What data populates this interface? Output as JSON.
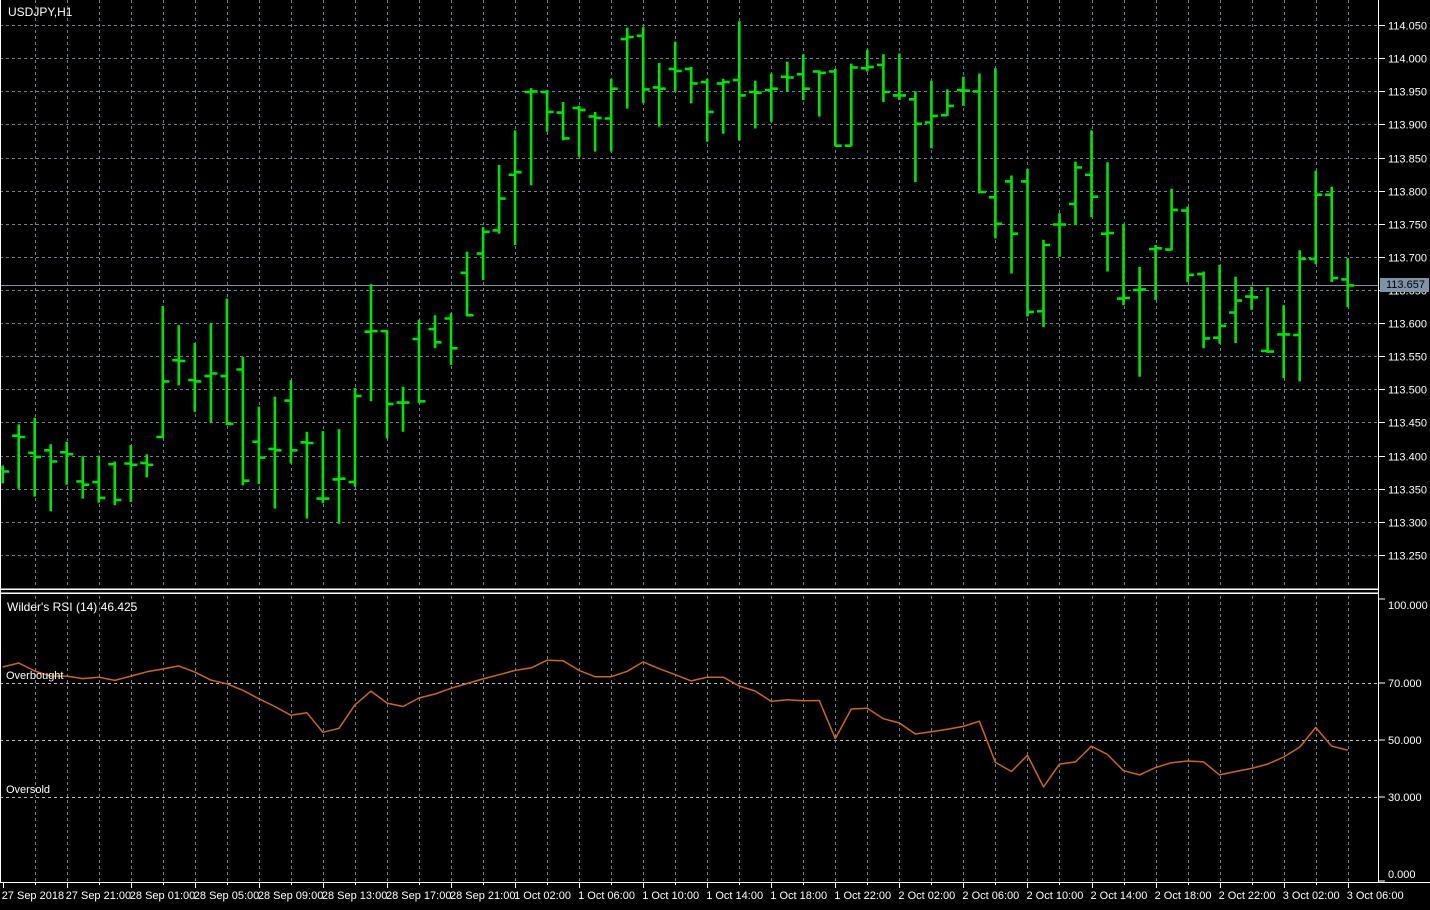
{
  "header": {
    "symbol_period": "USDJPY,H1"
  },
  "colors": {
    "background": "#000000",
    "bar": "#00e400",
    "grid": "#6f8193",
    "level_line": "#c0c0c0",
    "rsi_line": "#cc671f",
    "text": "#ffffff",
    "price_line": "#7e93a8",
    "badge_bg": "#7e93a8",
    "badge_text": "#000000",
    "border": "#ffffff"
  },
  "chart_data": {
    "type": "ohlc-bar",
    "title": "USDJPY,H1",
    "symbol": "USDJPY",
    "timeframe": "H1",
    "grid": "dashed",
    "current_price": "113.657",
    "x_axis": {
      "bars_per_label": 4,
      "labels": [
        "27 Sep 2018",
        "27 Sep 21:00",
        "28 Sep 01:00",
        "28 Sep 05:00",
        "28 Sep 09:00",
        "28 Sep 13:00",
        "28 Sep 17:00",
        "28 Sep 21:00",
        "1 Oct 02:00",
        "1 Oct 06:00",
        "1 Oct 10:00",
        "1 Oct 14:00",
        "1 Oct 18:00",
        "1 Oct 22:00",
        "2 Oct 02:00",
        "2 Oct 06:00",
        "2 Oct 10:00",
        "2 Oct 14:00",
        "2 Oct 18:00",
        "2 Oct 22:00",
        "3 Oct 02:00",
        "3 Oct 06:00"
      ]
    },
    "price_axis": {
      "visible_max": 114.088,
      "visible_min": 113.2,
      "step": 0.05,
      "tick_labels": [
        "114.050",
        "114.000",
        "113.950",
        "113.900",
        "113.850",
        "113.800",
        "113.750",
        "113.700",
        "113.650",
        "113.600",
        "113.550",
        "113.500",
        "113.450",
        "113.400",
        "113.350",
        "113.300",
        "113.250"
      ]
    },
    "bars": [
      [
        113.38,
        113.385,
        113.358,
        113.376
      ],
      [
        113.43,
        113.447,
        113.35,
        113.428
      ],
      [
        113.404,
        113.457,
        113.338,
        113.398
      ],
      [
        113.408,
        113.417,
        113.316,
        113.391
      ],
      [
        113.405,
        113.421,
        113.356,
        113.402
      ],
      [
        113.361,
        113.399,
        113.335,
        113.356
      ],
      [
        113.36,
        113.4,
        113.329,
        113.336
      ],
      [
        113.387,
        113.391,
        113.325,
        113.333
      ],
      [
        113.388,
        113.416,
        113.33,
        113.386
      ],
      [
        113.389,
        113.402,
        113.367,
        113.386
      ],
      [
        113.428,
        113.626,
        113.426,
        113.512
      ],
      [
        113.544,
        113.597,
        113.506,
        113.543
      ],
      [
        113.514,
        113.57,
        113.466,
        113.512
      ],
      [
        113.52,
        113.6,
        113.45,
        113.524
      ],
      [
        113.52,
        113.637,
        113.446,
        113.448
      ],
      [
        113.53,
        113.549,
        113.355,
        113.362
      ],
      [
        113.421,
        113.474,
        113.357,
        113.397
      ],
      [
        113.41,
        113.489,
        113.32,
        113.408
      ],
      [
        113.483,
        113.514,
        113.388,
        113.408
      ],
      [
        113.42,
        113.436,
        113.305,
        113.419
      ],
      [
        113.335,
        113.437,
        113.328,
        113.335
      ],
      [
        113.364,
        113.44,
        113.297,
        113.365
      ],
      [
        113.36,
        113.502,
        113.353,
        113.49
      ],
      [
        113.587,
        113.659,
        113.482,
        113.588
      ],
      [
        113.588,
        113.589,
        113.426,
        113.478
      ],
      [
        113.48,
        113.504,
        113.436,
        113.48
      ],
      [
        113.576,
        113.605,
        113.479,
        113.482
      ],
      [
        113.591,
        113.612,
        113.562,
        113.571
      ],
      [
        113.607,
        113.615,
        113.537,
        113.562
      ],
      [
        113.676,
        113.708,
        113.61,
        113.612
      ],
      [
        113.705,
        113.745,
        113.665,
        113.738
      ],
      [
        113.74,
        113.839,
        113.735,
        113.788
      ],
      [
        113.824,
        113.891,
        113.718,
        113.828
      ],
      [
        113.949,
        113.955,
        113.808,
        113.95
      ],
      [
        113.949,
        113.952,
        113.889,
        113.919
      ],
      [
        113.918,
        113.934,
        113.876,
        113.879
      ],
      [
        113.925,
        113.928,
        113.851,
        113.922
      ],
      [
        113.912,
        113.919,
        113.859,
        113.91
      ],
      [
        113.909,
        113.969,
        113.859,
        113.954
      ],
      [
        114.029,
        114.046,
        113.924,
        114.032
      ],
      [
        114.034,
        114.047,
        113.932,
        113.953
      ],
      [
        113.956,
        113.993,
        113.897,
        113.954
      ],
      [
        113.984,
        114.025,
        113.95,
        113.981
      ],
      [
        113.984,
        113.987,
        113.932,
        113.962
      ],
      [
        113.964,
        113.969,
        113.874,
        113.919
      ],
      [
        113.962,
        113.969,
        113.886,
        113.964
      ],
      [
        113.967,
        114.056,
        113.876,
        113.944
      ],
      [
        113.949,
        113.966,
        113.894,
        113.948
      ],
      [
        113.952,
        113.977,
        113.904,
        113.954
      ],
      [
        113.972,
        113.995,
        113.949,
        113.971
      ],
      [
        113.976,
        114.006,
        113.937,
        113.954
      ],
      [
        113.98,
        113.982,
        113.912,
        113.978
      ],
      [
        113.98,
        113.984,
        113.867,
        113.868
      ],
      [
        113.868,
        113.992,
        113.867,
        113.986
      ],
      [
        113.985,
        114.013,
        113.98,
        113.987
      ],
      [
        113.99,
        114.006,
        113.934,
        113.949
      ],
      [
        113.944,
        114.007,
        113.937,
        113.944
      ],
      [
        113.938,
        113.95,
        113.813,
        113.901
      ],
      [
        113.903,
        113.966,
        113.864,
        113.913
      ],
      [
        113.914,
        113.953,
        113.913,
        113.928
      ],
      [
        113.952,
        113.972,
        113.928,
        113.951
      ],
      [
        113.95,
        113.977,
        113.796,
        113.798
      ],
      [
        113.79,
        113.985,
        113.728,
        113.75
      ],
      [
        113.814,
        113.823,
        113.675,
        113.735
      ],
      [
        113.814,
        113.833,
        113.61,
        113.617
      ],
      [
        113.618,
        113.726,
        113.594,
        113.718
      ],
      [
        113.749,
        113.766,
        113.7,
        113.749
      ],
      [
        113.78,
        113.844,
        113.748,
        113.835
      ],
      [
        113.824,
        113.891,
        113.76,
        113.791
      ],
      [
        113.735,
        113.843,
        113.678,
        113.736
      ],
      [
        113.637,
        113.75,
        113.627,
        113.638
      ],
      [
        113.65,
        113.685,
        113.519,
        113.651
      ],
      [
        113.712,
        113.718,
        113.635,
        113.713
      ],
      [
        113.711,
        113.803,
        113.71,
        113.771
      ],
      [
        113.77,
        113.776,
        113.662,
        113.673
      ],
      [
        113.674,
        113.678,
        113.562,
        113.577
      ],
      [
        113.578,
        113.688,
        113.569,
        113.596
      ],
      [
        113.616,
        113.67,
        113.57,
        113.634
      ],
      [
        113.64,
        113.655,
        113.62,
        113.639
      ],
      [
        113.558,
        113.654,
        113.555,
        113.557
      ],
      [
        113.583,
        113.627,
        113.517,
        113.583
      ],
      [
        113.582,
        113.71,
        113.512,
        113.697
      ],
      [
        113.697,
        113.83,
        113.689,
        113.794
      ],
      [
        113.794,
        113.806,
        113.662,
        113.668
      ],
      [
        113.666,
        113.698,
        113.624,
        113.657
      ]
    ],
    "indicator": {
      "name": "Wilder's RSI",
      "period": 14,
      "current_value": 46.425,
      "title": "Wilder's RSI (14) 46.425",
      "axis": {
        "visible_max": 100.7,
        "visible_min": 0,
        "tick_values": [
          100,
          70,
          50,
          30,
          0
        ],
        "tick_labels": [
          "100.000",
          "70.000",
          "50.000",
          "30.000",
          "0.000"
        ]
      },
      "levels": [
        {
          "value": 70,
          "label": "Overbought"
        },
        {
          "value": 50,
          "label": ""
        },
        {
          "value": 30,
          "label": "Oversold"
        }
      ],
      "values": [
        75.7,
        77.1,
        74.3,
        72.5,
        72.5,
        71.6,
        72.1,
        71.0,
        72.5,
        74.0,
        75.0,
        76.1,
        73.9,
        71.1,
        69.8,
        67.5,
        64.5,
        61.8,
        58.7,
        59.6,
        52.7,
        54.1,
        62.4,
        67.2,
        63.0,
        61.8,
        64.8,
        66.2,
        68.2,
        69.9,
        71.5,
        73.0,
        74.5,
        75.4,
        78.1,
        77.9,
        74.5,
        72.3,
        72.3,
        74.2,
        77.5,
        75.1,
        73.0,
        70.8,
        72.1,
        72.1,
        69.0,
        67.2,
        63.6,
        64.2,
        63.8,
        63.9,
        50.5,
        60.9,
        61.2,
        57.5,
        56.0,
        52.1,
        52.9,
        53.8,
        54.8,
        56.6,
        42.1,
        38.9,
        44.6,
        33.5,
        41.5,
        42.3,
        47.8,
        44.9,
        39.2,
        37.7,
        40.3,
        42.0,
        42.6,
        42.3,
        37.7,
        38.9,
        40.0,
        41.5,
        44.0,
        47.5,
        54.4,
        47.8,
        46.425
      ]
    }
  }
}
